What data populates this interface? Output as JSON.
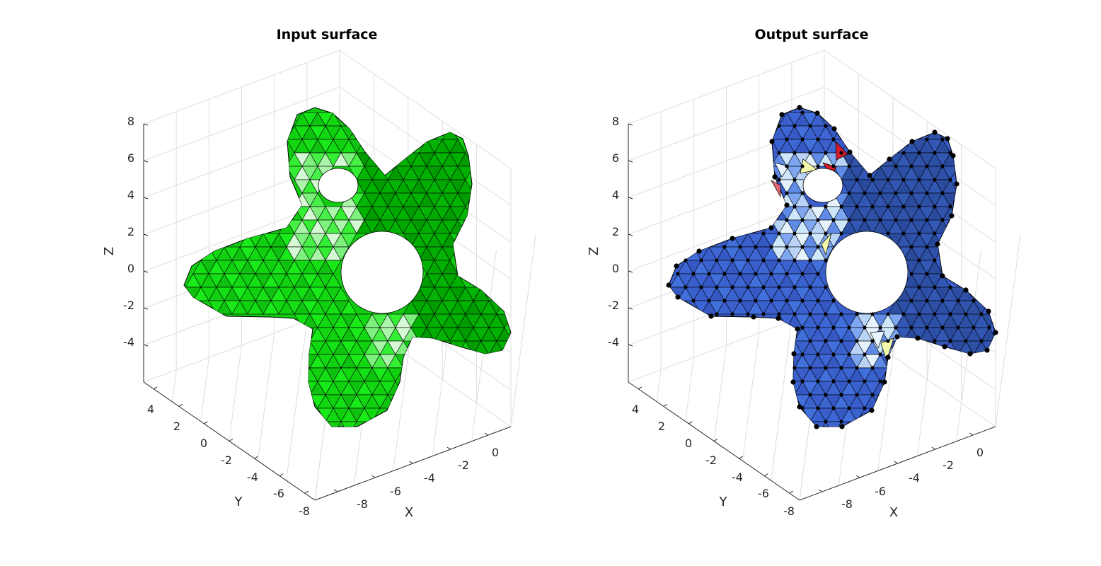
{
  "figure": {
    "background": "#ffffff",
    "grid": true
  },
  "chart_data": [
    {
      "type": "surface",
      "title": "Input surface",
      "xlabel": "X",
      "ylabel": "Y",
      "zlabel": "Z",
      "xticks": [
        "-8",
        "-6",
        "-4",
        "-2",
        "0"
      ],
      "yticks": [
        "-8",
        "-6",
        "-4",
        "-2",
        "0",
        "2",
        "4"
      ],
      "zticks": [
        "8",
        "6",
        "4",
        "2",
        "0",
        "-2",
        "-4"
      ],
      "mesh": {
        "shape": "five-armed star surface with two holes",
        "face_color": "#11cc11",
        "edge_color": "#000000",
        "nodes_marked": false
      }
    },
    {
      "type": "surface",
      "title": "Output surface",
      "xlabel": "X",
      "ylabel": "Y",
      "zlabel": "Z",
      "xticks": [
        "-8",
        "-6",
        "-4",
        "-2",
        "0"
      ],
      "yticks": [
        "-8",
        "-6",
        "-4",
        "-2",
        "0",
        "2",
        "4"
      ],
      "zticks": [
        "8",
        "6",
        "4",
        "2",
        "0",
        "-2",
        "-4"
      ],
      "mesh": {
        "shape": "five-armed star surface with two holes",
        "face_color": "#3a5fcd",
        "underlay_color": "#6b7f1f",
        "edge_color": "#000000",
        "nodes_marked": true,
        "node_color": "#000000",
        "highlight_colors": [
          "#d41c2c",
          "#e8f5ff",
          "#f3f9a8"
        ]
      }
    }
  ]
}
